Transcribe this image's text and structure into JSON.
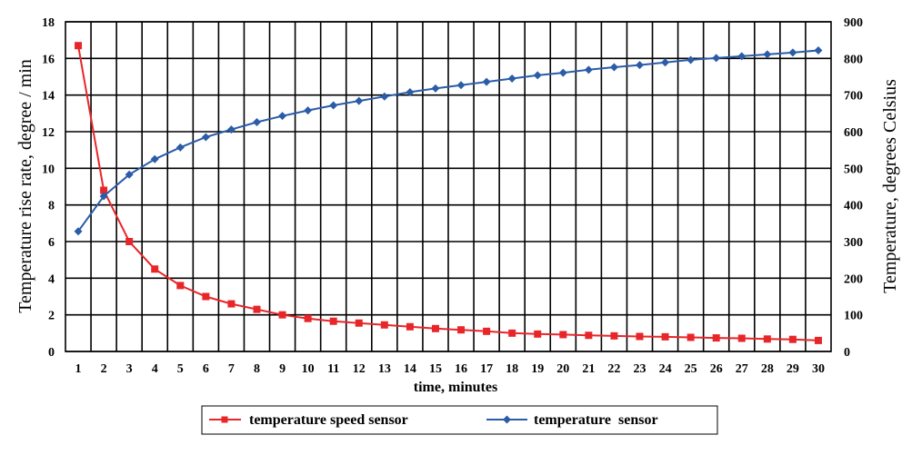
{
  "chart_data": {
    "type": "line",
    "xlabel": "time, minutes",
    "ylabel_left": "Temperature rise rate, degree / min",
    "ylabel_right": "Temperature, degrees Celsius",
    "x": [
      1,
      2,
      3,
      4,
      5,
      6,
      7,
      8,
      9,
      10,
      11,
      12,
      13,
      14,
      15,
      16,
      17,
      18,
      19,
      20,
      21,
      22,
      23,
      24,
      25,
      26,
      27,
      28,
      29,
      30
    ],
    "ylim_left": [
      0,
      18
    ],
    "ylim_right": [
      0,
      900
    ],
    "yticks_left": [
      0,
      2,
      4,
      6,
      8,
      10,
      12,
      14,
      16,
      18
    ],
    "yticks_right": [
      0,
      100,
      200,
      300,
      400,
      500,
      600,
      700,
      800,
      900
    ],
    "grid": true,
    "legend_position": "bottom",
    "series": [
      {
        "name": "temperature speed sensor",
        "axis": "left",
        "color": "#e8262a",
        "marker": "square",
        "values": [
          16.7,
          8.8,
          6.0,
          4.5,
          3.6,
          3.0,
          2.6,
          2.3,
          2.0,
          1.8,
          1.65,
          1.55,
          1.45,
          1.35,
          1.25,
          1.18,
          1.1,
          1.0,
          0.95,
          0.92,
          0.88,
          0.85,
          0.82,
          0.8,
          0.77,
          0.74,
          0.72,
          0.68,
          0.66,
          0.6
        ]
      },
      {
        "name": "temperature  sensor",
        "axis": "right",
        "color": "#2b5ca8",
        "marker": "diamond",
        "values": [
          328,
          424,
          483,
          525,
          557,
          585,
          606,
          626,
          643,
          658,
          672,
          684,
          696,
          708,
          718,
          727,
          736,
          745,
          754,
          761,
          769,
          776,
          782,
          789,
          796,
          801,
          806,
          811,
          816,
          822
        ]
      }
    ]
  }
}
